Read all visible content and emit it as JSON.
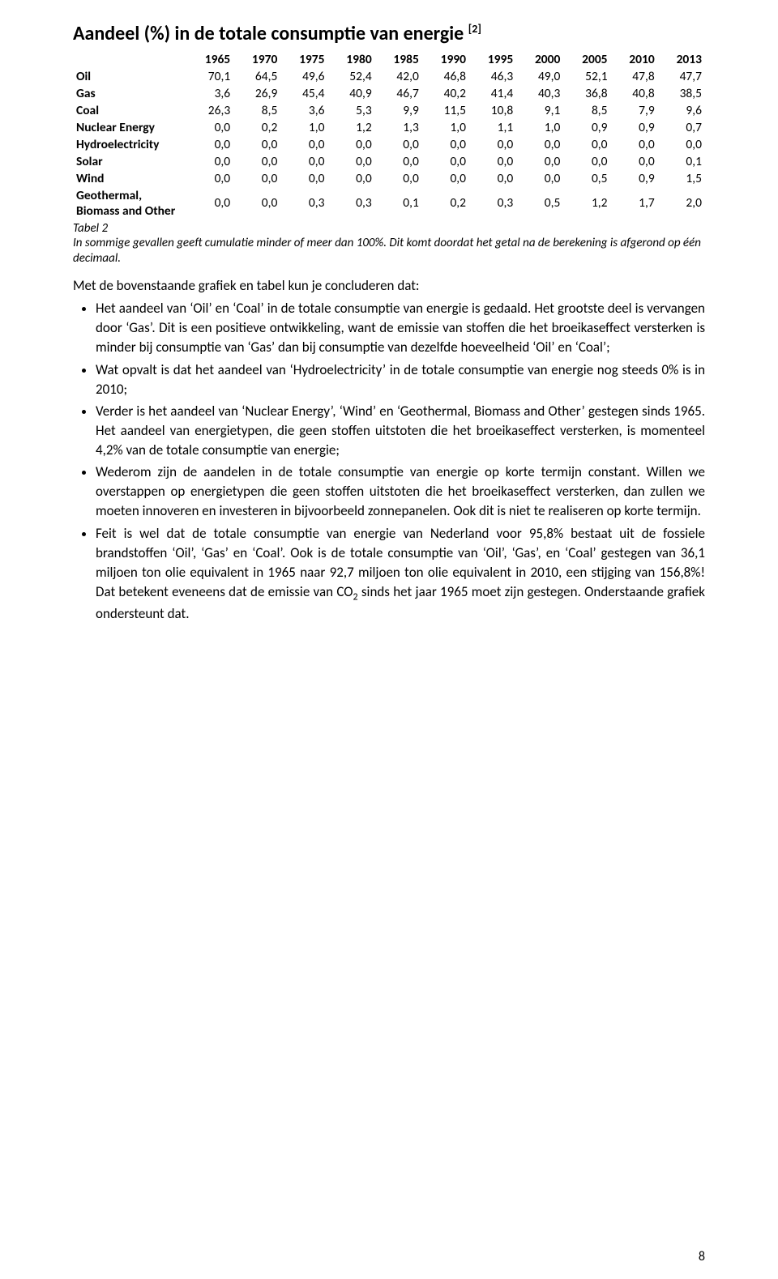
{
  "title": {
    "text": "Aandeel (%) in de totale consumptie van energie",
    "ref": "[2]"
  },
  "table": {
    "years": [
      "1965",
      "1970",
      "1975",
      "1980",
      "1985",
      "1990",
      "1995",
      "2000",
      "2005",
      "2010",
      "2013"
    ],
    "rows": [
      {
        "label": "Oil",
        "v": [
          "70,1",
          "64,5",
          "49,6",
          "52,4",
          "42,0",
          "46,8",
          "46,3",
          "49,0",
          "52,1",
          "47,8",
          "47,7"
        ]
      },
      {
        "label": "Gas",
        "v": [
          "3,6",
          "26,9",
          "45,4",
          "40,9",
          "46,7",
          "40,2",
          "41,4",
          "40,3",
          "36,8",
          "40,8",
          "38,5"
        ]
      },
      {
        "label": "Coal",
        "v": [
          "26,3",
          "8,5",
          "3,6",
          "5,3",
          "9,9",
          "11,5",
          "10,8",
          "9,1",
          "8,5",
          "7,9",
          "9,6"
        ]
      },
      {
        "label": "Nuclear Energy",
        "v": [
          "0,0",
          "0,2",
          "1,0",
          "1,2",
          "1,3",
          "1,0",
          "1,1",
          "1,0",
          "0,9",
          "0,9",
          "0,7"
        ]
      },
      {
        "label": "Hydroelectricity",
        "v": [
          "0,0",
          "0,0",
          "0,0",
          "0,0",
          "0,0",
          "0,0",
          "0,0",
          "0,0",
          "0,0",
          "0,0",
          "0,0"
        ]
      },
      {
        "label": "Solar",
        "v": [
          "0,0",
          "0,0",
          "0,0",
          "0,0",
          "0,0",
          "0,0",
          "0,0",
          "0,0",
          "0,0",
          "0,0",
          "0,1"
        ]
      },
      {
        "label": "Wind",
        "v": [
          "0,0",
          "0,0",
          "0,0",
          "0,0",
          "0,0",
          "0,0",
          "0,0",
          "0,0",
          "0,5",
          "0,9",
          "1,5"
        ]
      },
      {
        "label": "Geothermal, Biomass and Other",
        "v": [
          "0,0",
          "0,0",
          "0,3",
          "0,3",
          "0,1",
          "0,2",
          "0,3",
          "0,5",
          "1,2",
          "1,7",
          "2,0"
        ]
      }
    ],
    "caption": "Tabel 2",
    "note": "In sommige gevallen geeft cumulatie minder of meer dan 100%. Dit komt doordat het getal na de berekening is afgerond op één decimaal."
  },
  "body": {
    "intro": "Met de bovenstaande grafiek en tabel kun je concluderen dat:",
    "bullets": [
      "Het aandeel van 'Oil' en 'Coal' in de totale consumptie van energie is gedaald. Het grootste deel is vervangen door 'Gas'. Dit is een positieve ontwikkeling, want de emissie van stoffen die het broeikaseffect versterken is minder bij consumptie van 'Gas' dan bij consumptie van dezelfde hoeveelheid 'Oil' en 'Coal';",
      "Wat opvalt is dat het aandeel van 'Hydroelectricity' in de totale consumptie van energie nog steeds 0% is in 2010;",
      "Verder is het aandeel van 'Nuclear Energy', 'Wind' en 'Geothermal, Biomass and Other' gestegen sinds 1965. Het aandeel van energietypen, die geen stoffen uitstoten die het broeikaseffect versterken, is momenteel 4,2% van de totale consumptie van energie;",
      "Wederom zijn de aandelen in de totale consumptie van energie op korte termijn constant. Willen we overstappen op energietypen die geen stoffen uitstoten die het broeikaseffect versterken, dan zullen we moeten innoveren en investeren in bijvoorbeeld zonnepanelen. Ook dit is niet te realiseren op korte termijn.",
      "Feit is wel dat de totale consumptie van energie van Nederland voor 95,8% bestaat uit de fossiele brandstoffen 'Oil', 'Gas' en 'Coal'. Ook is de totale consumptie van 'Oil', 'Gas', en 'Coal' gestegen van 36,1 miljoen ton olie equivalent in 1965 naar 92,7 miljoen ton olie equivalent in 2010, een stijging van 156,8%! Dat betekent eveneens dat de emissie van CO2 sinds het jaar 1965 moet zijn gestegen. Onderstaande grafiek ondersteunt dat."
    ]
  },
  "pageNumber": "8",
  "style": {
    "text_color": "#000000",
    "bg_color": "#ffffff",
    "title_fontsize": 24,
    "body_fontsize": 17,
    "table_fontsize": 15.5,
    "caption_fontsize": 15
  }
}
